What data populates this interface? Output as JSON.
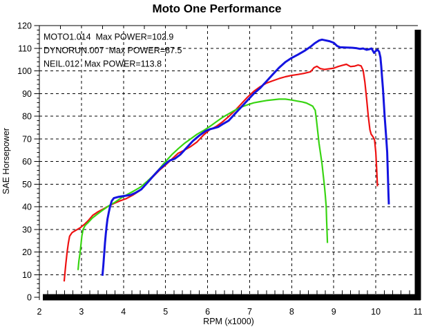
{
  "chart_data": {
    "type": "line",
    "title": "Moto One Performance",
    "xlabel": "RPM (x1000)",
    "ylabel": "SAE Horsepower",
    "xlim": [
      2,
      11
    ],
    "ylim": [
      0,
      120
    ],
    "x_ticks": [
      2,
      3,
      4,
      5,
      6,
      7,
      8,
      9,
      10,
      11
    ],
    "y_ticks": [
      0,
      10,
      20,
      30,
      40,
      50,
      60,
      70,
      80,
      90,
      100,
      110,
      120
    ],
    "x_minor_step": 0.2,
    "x_top_minor_step": 0.5,
    "y_minor_step": 2,
    "grid": true,
    "grid_style": "dashed",
    "legend_position": "top-left-inside",
    "frame_color": "#000000",
    "series": [
      {
        "name": "MOTO1.014",
        "legend_label": "MOTO1.014  Max POWER=102.9",
        "max_power": 102.9,
        "color": "#ee1111",
        "stroke_width": 2.2,
        "points": [
          [
            2.59,
            7
          ],
          [
            2.61,
            11
          ],
          [
            2.63,
            15
          ],
          [
            2.66,
            20
          ],
          [
            2.69,
            24
          ],
          [
            2.72,
            27
          ],
          [
            2.78,
            28.6
          ],
          [
            2.87,
            29.6
          ],
          [
            2.97,
            30.7
          ],
          [
            3.07,
            32.2
          ],
          [
            3.17,
            34
          ],
          [
            3.27,
            36.2
          ],
          [
            3.38,
            37.6
          ],
          [
            3.48,
            38.6
          ],
          [
            3.62,
            40
          ],
          [
            3.77,
            41.4
          ],
          [
            3.92,
            42.6
          ],
          [
            4.07,
            43.6
          ],
          [
            4.22,
            45.1
          ],
          [
            4.38,
            47
          ],
          [
            4.55,
            50.2
          ],
          [
            4.7,
            53.2
          ],
          [
            4.85,
            56
          ],
          [
            5.0,
            58.4
          ],
          [
            5.15,
            61
          ],
          [
            5.3,
            63.6
          ],
          [
            5.45,
            65
          ],
          [
            5.6,
            66.6
          ],
          [
            5.75,
            68.6
          ],
          [
            5.9,
            71.6
          ],
          [
            6.05,
            74
          ],
          [
            6.2,
            75.4
          ],
          [
            6.35,
            77.4
          ],
          [
            6.5,
            79.8
          ],
          [
            6.65,
            82.4
          ],
          [
            6.8,
            85.4
          ],
          [
            6.95,
            88.4
          ],
          [
            7.1,
            91
          ],
          [
            7.25,
            93
          ],
          [
            7.4,
            94.6
          ],
          [
            7.55,
            95.6
          ],
          [
            7.7,
            96.6
          ],
          [
            7.85,
            97.4
          ],
          [
            8.0,
            98
          ],
          [
            8.15,
            98.4
          ],
          [
            8.3,
            98.9
          ],
          [
            8.45,
            99.6
          ],
          [
            8.53,
            101.4
          ],
          [
            8.6,
            102
          ],
          [
            8.68,
            101
          ],
          [
            8.78,
            100.6
          ],
          [
            8.88,
            100.9
          ],
          [
            9.0,
            101.2
          ],
          [
            9.1,
            101.9
          ],
          [
            9.2,
            102.4
          ],
          [
            9.3,
            102.9
          ],
          [
            9.4,
            101.9
          ],
          [
            9.5,
            102.1
          ],
          [
            9.58,
            102.6
          ],
          [
            9.65,
            102.2
          ],
          [
            9.7,
            100.2
          ],
          [
            9.74,
            95
          ],
          [
            9.78,
            88
          ],
          [
            9.82,
            80
          ],
          [
            9.86,
            74
          ],
          [
            9.89,
            72
          ],
          [
            9.93,
            71
          ],
          [
            9.97,
            69.6
          ],
          [
            10.0,
            64
          ],
          [
            10.02,
            57
          ],
          [
            10.04,
            49
          ]
        ]
      },
      {
        "name": "DYNORUN.007",
        "legend_label": "DYNORUN.007  Max POWER=87.5",
        "max_power": 87.5,
        "color": "#38d412",
        "stroke_width": 2.2,
        "points": [
          [
            2.92,
            12
          ],
          [
            2.94,
            16
          ],
          [
            2.97,
            20
          ],
          [
            2.99,
            23.5
          ],
          [
            3.01,
            27
          ],
          [
            3.04,
            30
          ],
          [
            3.09,
            31.8
          ],
          [
            3.16,
            33
          ],
          [
            3.26,
            35
          ],
          [
            3.37,
            36.6
          ],
          [
            3.5,
            38.4
          ],
          [
            3.65,
            40.4
          ],
          [
            3.8,
            42
          ],
          [
            3.95,
            43.9
          ],
          [
            4.1,
            45.5
          ],
          [
            4.25,
            47
          ],
          [
            4.4,
            48.6
          ],
          [
            4.55,
            51
          ],
          [
            4.7,
            53.6
          ],
          [
            4.85,
            56.6
          ],
          [
            5.0,
            60
          ],
          [
            5.15,
            63
          ],
          [
            5.3,
            65.6
          ],
          [
            5.45,
            68
          ],
          [
            5.6,
            70
          ],
          [
            5.75,
            72
          ],
          [
            5.9,
            73.6
          ],
          [
            6.05,
            75.4
          ],
          [
            6.2,
            77.4
          ],
          [
            6.35,
            79.4
          ],
          [
            6.5,
            81
          ],
          [
            6.65,
            82.6
          ],
          [
            6.8,
            84
          ],
          [
            6.95,
            85
          ],
          [
            7.1,
            85.9
          ],
          [
            7.25,
            86.4
          ],
          [
            7.4,
            86.9
          ],
          [
            7.55,
            87.2
          ],
          [
            7.7,
            87.5
          ],
          [
            7.85,
            87.5
          ],
          [
            8.0,
            87.1
          ],
          [
            8.12,
            86.7
          ],
          [
            8.25,
            86.3
          ],
          [
            8.35,
            85.8
          ],
          [
            8.45,
            84.9
          ],
          [
            8.5,
            84.4
          ],
          [
            8.53,
            83.4
          ],
          [
            8.56,
            82.6
          ],
          [
            8.59,
            78
          ],
          [
            8.62,
            73
          ],
          [
            8.65,
            68
          ],
          [
            8.69,
            63
          ],
          [
            8.72,
            59
          ],
          [
            8.75,
            54
          ],
          [
            8.78,
            49
          ],
          [
            8.8,
            45
          ],
          [
            8.82,
            40
          ],
          [
            8.83,
            34
          ],
          [
            8.84,
            29
          ],
          [
            8.85,
            24
          ]
        ]
      },
      {
        "name": "NEIL.012",
        "legend_label": "NEIL.012  Max POWER=113.8",
        "max_power": 113.8,
        "color": "#1414e0",
        "stroke_width": 3,
        "points": [
          [
            3.5,
            9.5
          ],
          [
            3.52,
            14
          ],
          [
            3.54,
            19
          ],
          [
            3.56,
            24
          ],
          [
            3.58,
            28
          ],
          [
            3.6,
            31.5
          ],
          [
            3.62,
            34.5
          ],
          [
            3.65,
            37.5
          ],
          [
            3.68,
            40
          ],
          [
            3.72,
            42.5
          ],
          [
            3.77,
            43.8
          ],
          [
            3.87,
            44.3
          ],
          [
            3.97,
            44.6
          ],
          [
            4.07,
            44.9
          ],
          [
            4.17,
            45.2
          ],
          [
            4.27,
            46
          ],
          [
            4.42,
            47.6
          ],
          [
            4.56,
            50.4
          ],
          [
            4.7,
            53.4
          ],
          [
            4.85,
            56.4
          ],
          [
            5.0,
            58.9
          ],
          [
            5.1,
            60.4
          ],
          [
            5.22,
            61.2
          ],
          [
            5.35,
            63
          ],
          [
            5.5,
            66
          ],
          [
            5.65,
            69
          ],
          [
            5.8,
            71.4
          ],
          [
            5.95,
            73.4
          ],
          [
            6.05,
            74.2
          ],
          [
            6.15,
            74.7
          ],
          [
            6.25,
            75.2
          ],
          [
            6.35,
            76.4
          ],
          [
            6.5,
            78
          ],
          [
            6.65,
            81
          ],
          [
            6.8,
            84
          ],
          [
            6.95,
            87
          ],
          [
            7.1,
            90
          ],
          [
            7.25,
            92.4
          ],
          [
            7.4,
            95.4
          ],
          [
            7.55,
            98.4
          ],
          [
            7.7,
            101.4
          ],
          [
            7.85,
            103.9
          ],
          [
            8.0,
            105.7
          ],
          [
            8.15,
            107.2
          ],
          [
            8.3,
            108.8
          ],
          [
            8.45,
            110.7
          ],
          [
            8.55,
            112.2
          ],
          [
            8.65,
            113.4
          ],
          [
            8.72,
            113.8
          ],
          [
            8.8,
            113.5
          ],
          [
            8.9,
            113.1
          ],
          [
            9.0,
            112.4
          ],
          [
            9.08,
            111
          ],
          [
            9.15,
            110.4
          ],
          [
            9.3,
            110.3
          ],
          [
            9.45,
            110.2
          ],
          [
            9.55,
            110
          ],
          [
            9.62,
            109.7
          ],
          [
            9.7,
            109.9
          ],
          [
            9.78,
            109.3
          ],
          [
            9.85,
            109.6
          ],
          [
            9.9,
            109.9
          ],
          [
            9.96,
            107.9
          ],
          [
            10.0,
            108.8
          ],
          [
            10.04,
            109.4
          ],
          [
            10.08,
            108.4
          ],
          [
            10.11,
            106
          ],
          [
            10.13,
            102
          ],
          [
            10.15,
            97
          ],
          [
            10.17,
            92
          ],
          [
            10.19,
            86
          ],
          [
            10.21,
            80
          ],
          [
            10.23,
            75
          ],
          [
            10.25,
            70
          ],
          [
            10.27,
            64
          ],
          [
            10.28,
            58
          ],
          [
            10.29,
            52
          ],
          [
            10.3,
            46
          ],
          [
            10.31,
            41
          ]
        ]
      }
    ]
  }
}
